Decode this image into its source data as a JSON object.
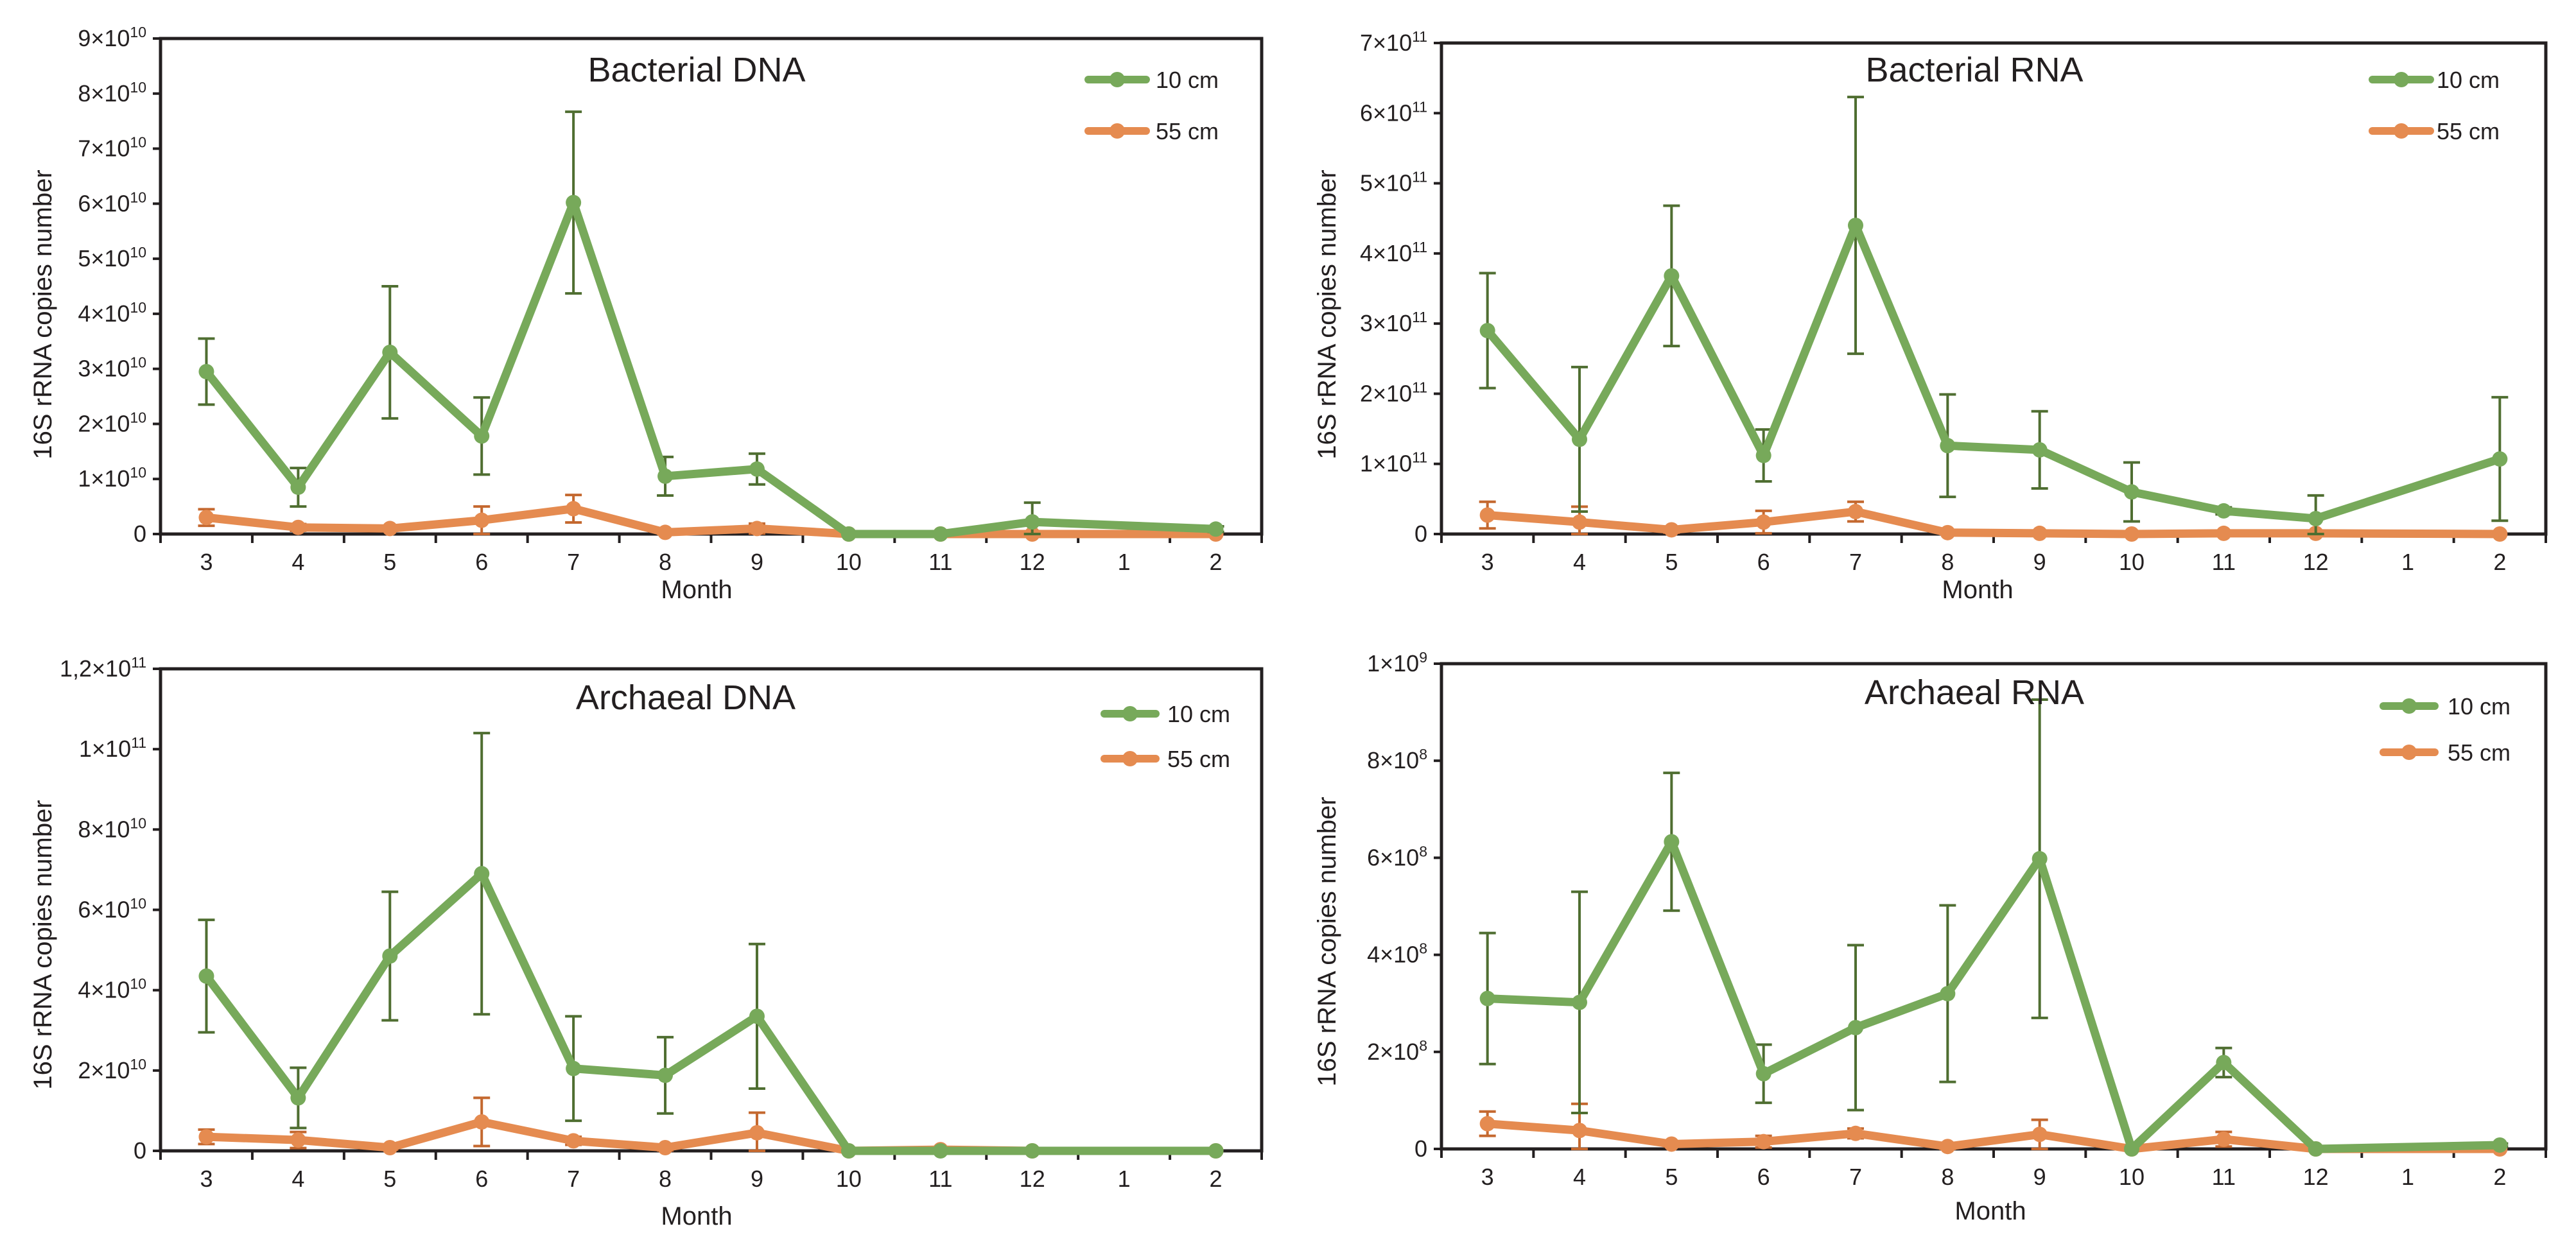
{
  "chart_data": [
    {
      "type": "line",
      "title": "Bacterial DNA",
      "xlabel": "Month",
      "ylabel": "16S rRNA copies number",
      "categories": [
        "3",
        "4",
        "5",
        "6",
        "7",
        "8",
        "9",
        "10",
        "11",
        "12",
        "1",
        "2"
      ],
      "ylim": [
        0,
        90000000000
      ],
      "yticks": [
        {
          "value": 0,
          "mant": "0",
          "exp": ""
        },
        {
          "value": 10000000000,
          "mant": "1×10",
          "exp": "10"
        },
        {
          "value": 20000000000,
          "mant": "2×10",
          "exp": "10"
        },
        {
          "value": 30000000000,
          "mant": "3×10",
          "exp": "10"
        },
        {
          "value": 40000000000,
          "mant": "4×10",
          "exp": "10"
        },
        {
          "value": 50000000000,
          "mant": "5×10",
          "exp": "10"
        },
        {
          "value": 60000000000,
          "mant": "6×10",
          "exp": "10"
        },
        {
          "value": 70000000000,
          "mant": "7×10",
          "exp": "10"
        },
        {
          "value": 80000000000,
          "mant": "8×10",
          "exp": "10"
        },
        {
          "value": 90000000000,
          "mant": "9×10",
          "exp": "10"
        }
      ],
      "legend_position": "top-right",
      "series": [
        {
          "name": "10 cm",
          "color": "#77a95a",
          "values": [
            29500000000,
            8500000000,
            33000000000,
            17800000000,
            60200000000,
            10500000000,
            11800000000,
            0,
            0,
            2200000000,
            null,
            900000000
          ],
          "errors": [
            6000000000,
            3500000000,
            12000000000,
            7000000000,
            16500000000,
            3500000000,
            2800000000,
            0,
            0,
            3500000000,
            null,
            500000000
          ]
        },
        {
          "name": "55 cm",
          "color": "#e58b50",
          "values": [
            3000000000,
            1200000000,
            1000000000,
            2500000000,
            4600000000,
            300000000,
            1000000000,
            0,
            0,
            0,
            null,
            0
          ],
          "errors": [
            1500000000,
            600000000,
            400000000,
            2500000000,
            2500000000,
            300000000,
            900000000,
            0,
            0,
            0,
            null,
            0
          ]
        }
      ]
    },
    {
      "type": "line",
      "title": "Bacterial RNA",
      "xlabel": "Month",
      "ylabel": "16S rRNA copies number",
      "categories": [
        "3",
        "4",
        "5",
        "6",
        "7",
        "8",
        "9",
        "10",
        "11",
        "12",
        "1",
        "2"
      ],
      "ylim": [
        0,
        700000000000
      ],
      "yticks": [
        {
          "value": 0,
          "mant": "0",
          "exp": ""
        },
        {
          "value": 100000000000,
          "mant": "1×10",
          "exp": "11"
        },
        {
          "value": 200000000000,
          "mant": "2×10",
          "exp": "11"
        },
        {
          "value": 300000000000,
          "mant": "3×10",
          "exp": "11"
        },
        {
          "value": 400000000000,
          "mant": "4×10",
          "exp": "11"
        },
        {
          "value": 500000000000,
          "mant": "5×10",
          "exp": "11"
        },
        {
          "value": 600000000000,
          "mant": "6×10",
          "exp": "11"
        },
        {
          "value": 700000000000,
          "mant": "7×10",
          "exp": "11"
        }
      ],
      "legend_position": "top-right",
      "series": [
        {
          "name": "10 cm",
          "color": "#77a95a",
          "values": [
            290000000000,
            135000000000,
            368000000000,
            112000000000,
            440000000000,
            126000000000,
            120000000000,
            60000000000,
            33000000000,
            22000000000,
            null,
            107000000000
          ],
          "errors": [
            82000000000,
            103000000000,
            100000000000,
            37000000000,
            183000000000,
            73000000000,
            55000000000,
            42000000000,
            5000000000,
            33000000000,
            null,
            88000000000
          ]
        },
        {
          "name": "55 cm",
          "color": "#e58b50",
          "values": [
            27000000000,
            17000000000,
            6000000000,
            17000000000,
            32000000000,
            2000000000,
            1000000000,
            0,
            1000000000,
            1000000000,
            null,
            0
          ],
          "errors": [
            19000000000,
            22000000000,
            4000000000,
            16000000000,
            14000000000,
            2000000000,
            1000000000,
            0,
            1000000000,
            1000000000,
            null,
            0
          ]
        }
      ]
    },
    {
      "type": "line",
      "title": "Archaeal DNA",
      "xlabel": "Month",
      "ylabel": "16S rRNA copies number",
      "categories": [
        "3",
        "4",
        "5",
        "6",
        "7",
        "8",
        "9",
        "10",
        "11",
        "12",
        "1",
        "2"
      ],
      "ylim": [
        0,
        120000000000
      ],
      "yticks": [
        {
          "value": 0,
          "mant": "0",
          "exp": ""
        },
        {
          "value": 20000000000,
          "mant": "2×10",
          "exp": "10"
        },
        {
          "value": 40000000000,
          "mant": "4×10",
          "exp": "10"
        },
        {
          "value": 60000000000,
          "mant": "6×10",
          "exp": "10"
        },
        {
          "value": 80000000000,
          "mant": "8×10",
          "exp": "10"
        },
        {
          "value": 100000000000,
          "mant": "1×10",
          "exp": "11"
        },
        {
          "value": 120000000000,
          "mant": "1,2×10",
          "exp": "11"
        }
      ],
      "legend_position": "top-right",
      "series": [
        {
          "name": "10 cm",
          "color": "#77a95a",
          "values": [
            43500000000,
            13200000000,
            48500000000,
            69000000000,
            20500000000,
            18800000000,
            33500000000,
            0,
            0,
            0,
            null,
            0
          ],
          "errors": [
            14000000000,
            7500000000,
            16000000000,
            35000000000,
            13000000000,
            9500000000,
            18000000000,
            0,
            0,
            0,
            null,
            0
          ]
        },
        {
          "name": "55 cm",
          "color": "#e58b50",
          "values": [
            3500000000,
            2700000000,
            800000000,
            7200000000,
            2500000000,
            800000000,
            4500000000,
            0,
            300000000,
            0,
            null,
            0
          ],
          "errors": [
            1800000000,
            2000000000,
            500000000,
            6000000000,
            1000000000,
            700000000,
            5000000000,
            0,
            200000000,
            0,
            null,
            0
          ]
        }
      ]
    },
    {
      "type": "line",
      "title": "Archaeal RNA",
      "xlabel": "Month",
      "ylabel": "16S rRNA copies number",
      "categories": [
        "3",
        "4",
        "5",
        "6",
        "7",
        "8",
        "9",
        "10",
        "11",
        "12",
        "1",
        "2"
      ],
      "ylim": [
        0,
        1000000000
      ],
      "yticks": [
        {
          "value": 0,
          "mant": "0",
          "exp": ""
        },
        {
          "value": 200000000,
          "mant": "2×10",
          "exp": "8"
        },
        {
          "value": 400000000,
          "mant": "4×10",
          "exp": "8"
        },
        {
          "value": 600000000,
          "mant": "6×10",
          "exp": "8"
        },
        {
          "value": 800000000,
          "mant": "8×10",
          "exp": "8"
        },
        {
          "value": 1000000000,
          "mant": "1×10",
          "exp": "9"
        }
      ],
      "legend_position": "top-right",
      "series": [
        {
          "name": "10 cm",
          "color": "#77a95a",
          "values": [
            310000000,
            302000000,
            633000000,
            155000000,
            250000000,
            320000000,
            598000000,
            0,
            178000000,
            0,
            null,
            8000000
          ],
          "errors": [
            135000000,
            228000000,
            142000000,
            60000000,
            170000000,
            182000000,
            328000000,
            0,
            30000000,
            0,
            null,
            3000000
          ]
        },
        {
          "name": "55 cm",
          "color": "#e58b50",
          "values": [
            52000000,
            38000000,
            10000000,
            15000000,
            32000000,
            5000000,
            30000000,
            0,
            20000000,
            0,
            null,
            0
          ],
          "errors": [
            25000000,
            55000000,
            5000000,
            12000000,
            10000000,
            5000000,
            30000000,
            0,
            15000000,
            0,
            null,
            0
          ]
        }
      ]
    }
  ]
}
